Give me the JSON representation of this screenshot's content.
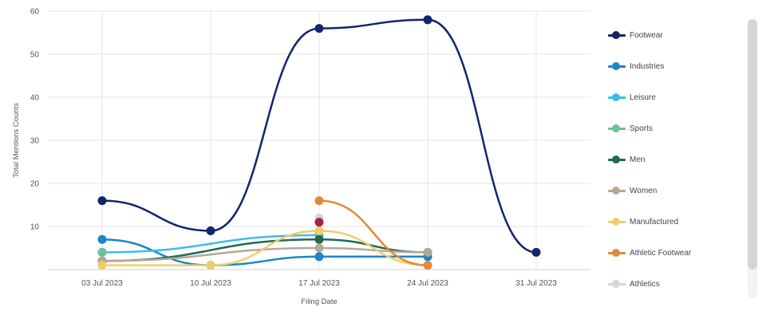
{
  "chart_data": {
    "type": "line",
    "xlabel": "Filing Date",
    "ylabel": "Total Mentions Counts",
    "categories": [
      "03 Jul 2023",
      "10 Jul 2023",
      "17 Jul 2023",
      "24 Jul 2023",
      "31 Jul 2023"
    ],
    "ylim": [
      0,
      60
    ],
    "yticks": [
      10,
      20,
      30,
      40,
      50,
      60
    ],
    "grid": true,
    "smooth": true,
    "legend_position": "right",
    "series": [
      {
        "name": "Footwear",
        "color": "#14256b",
        "values": [
          16,
          9,
          56,
          58,
          4
        ]
      },
      {
        "name": "Industries",
        "color": "#1a86c9",
        "values": [
          7,
          1,
          3,
          3,
          null
        ]
      },
      {
        "name": "Leisure",
        "color": "#3fbbea",
        "values": [
          4,
          null,
          8,
          null,
          null
        ]
      },
      {
        "name": "Sports",
        "color": "#6cc294",
        "values": [
          4,
          null,
          null,
          null,
          null
        ]
      },
      {
        "name": "Men",
        "color": "#1e6b4e",
        "values": [
          2,
          null,
          7,
          4,
          null
        ]
      },
      {
        "name": "Women",
        "color": "#b5a898",
        "values": [
          2,
          null,
          5,
          4,
          null
        ]
      },
      {
        "name": "Manufactured",
        "color": "#f0cd6a",
        "values": [
          1,
          1,
          9,
          1,
          null
        ]
      },
      {
        "name": "Athletic Footwear",
        "color": "#e08a3c",
        "values": [
          null,
          null,
          16,
          1,
          null
        ]
      },
      {
        "name": "Athletics",
        "color": "#d3d6da",
        "values": [
          null,
          null,
          12,
          null,
          null
        ]
      },
      {
        "color": "#a8253b",
        "values": [
          null,
          null,
          11,
          null,
          null
        ]
      }
    ]
  }
}
